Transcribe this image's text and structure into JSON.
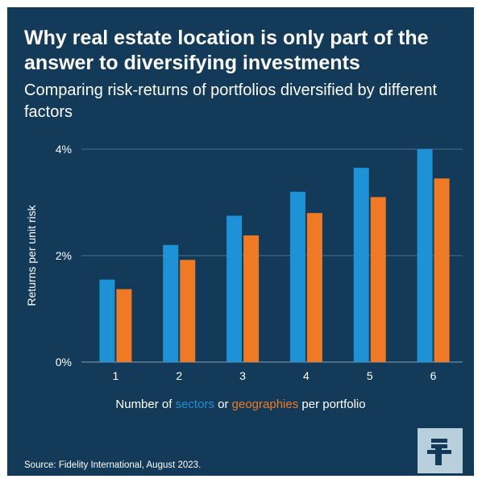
{
  "title": "Why real estate location is only part of the answer to diversifying investments",
  "subtitle": "Comparing risk-returns of portfolios diversified by different factors",
  "xlabel_parts": {
    "prefix": "Number of ",
    "sectors": "sectors",
    "middle": " or ",
    "geographies": "geographies",
    "suffix": " per portfolio"
  },
  "source": "Source: Fidelity International, August 2023.",
  "logo_icon": "fidelity-f-logo-icon",
  "colors": {
    "background": "#133a58",
    "sectors": "#1e92d6",
    "geographies": "#f07a24",
    "grid": "#4d6f8a",
    "logo_bg": "#b8cfdc"
  },
  "chart_data": {
    "type": "bar",
    "title": "",
    "xlabel": "Number of sectors or geographies per portfolio",
    "ylabel": "Returns per unit risk",
    "categories": [
      "1",
      "2",
      "3",
      "4",
      "5",
      "6"
    ],
    "series": [
      {
        "name": "sectors",
        "values": [
          1.55,
          2.2,
          2.75,
          3.2,
          3.65,
          4.0
        ]
      },
      {
        "name": "geographies",
        "values": [
          1.37,
          1.92,
          2.38,
          2.8,
          3.1,
          3.45
        ]
      }
    ],
    "ylim": [
      0,
      4
    ],
    "yticks": [
      "0%",
      "2%",
      "4%"
    ],
    "ytick_values": [
      0,
      2,
      4
    ],
    "grid": true,
    "legend": "inline in x-axis label"
  }
}
